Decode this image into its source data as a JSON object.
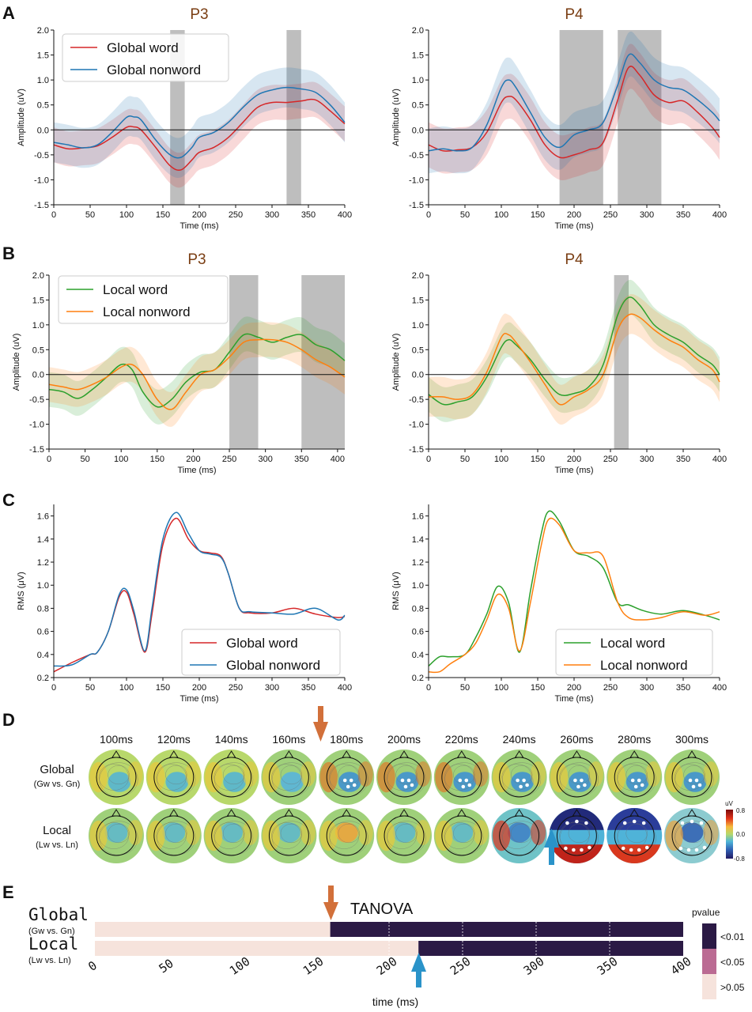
{
  "panels": {
    "A": {
      "letter": "A"
    },
    "B": {
      "letter": "B"
    },
    "C": {
      "letter": "C"
    },
    "D": {
      "letter": "D"
    },
    "E": {
      "letter": "E"
    }
  },
  "axis_labels": {
    "amplitude": "Amplitude (uV)",
    "rms": "RMS (μV)",
    "time": "Time (ms)",
    "time_e": "time (ms)"
  },
  "chart_data": [
    {
      "id": "A_P3",
      "type": "line",
      "title": "P3",
      "xlabel": "Time (ms)",
      "ylabel": "Amplitude (uV)",
      "xlim": [
        0,
        400
      ],
      "ylim": [
        -1.5,
        2.0
      ],
      "xticks": [
        0,
        50,
        100,
        150,
        200,
        250,
        300,
        350,
        400
      ],
      "yticks": [
        -1.5,
        -1.0,
        -0.5,
        0.0,
        0.5,
        1.0,
        1.5,
        2.0
      ],
      "legend": "top-left",
      "significant_windows": [
        [
          160,
          180
        ],
        [
          320,
          340
        ]
      ],
      "series": [
        {
          "name": "Global word",
          "color": "#d62728",
          "x": [
            0,
            20,
            40,
            60,
            80,
            100,
            110,
            120,
            140,
            160,
            175,
            190,
            200,
            220,
            240,
            260,
            280,
            300,
            320,
            340,
            360,
            380,
            400
          ],
          "values": [
            -0.3,
            -0.38,
            -0.36,
            -0.32,
            -0.15,
            0.05,
            0.06,
            0.0,
            -0.35,
            -0.72,
            -0.8,
            -0.6,
            -0.45,
            -0.35,
            -0.15,
            0.15,
            0.45,
            0.55,
            0.55,
            0.58,
            0.6,
            0.38,
            0.12
          ],
          "band": 0.35
        },
        {
          "name": "Global nonword",
          "color": "#1f77b4",
          "x": [
            0,
            20,
            40,
            60,
            80,
            100,
            110,
            120,
            140,
            160,
            175,
            190,
            200,
            220,
            240,
            260,
            280,
            300,
            320,
            340,
            360,
            380,
            400
          ],
          "values": [
            -0.25,
            -0.3,
            -0.36,
            -0.3,
            -0.05,
            0.25,
            0.26,
            0.2,
            -0.2,
            -0.5,
            -0.55,
            -0.35,
            -0.15,
            -0.05,
            0.15,
            0.45,
            0.7,
            0.8,
            0.85,
            0.82,
            0.75,
            0.5,
            0.15
          ],
          "band": 0.4
        }
      ]
    },
    {
      "id": "A_P4",
      "type": "line",
      "title": "P4",
      "xlabel": "Time (ms)",
      "ylabel": "Amplitude (uV)",
      "xlim": [
        0,
        400
      ],
      "ylim": [
        -1.5,
        2.0
      ],
      "xticks": [
        0,
        50,
        100,
        150,
        200,
        250,
        300,
        350,
        400
      ],
      "yticks": [
        -1.5,
        -1.0,
        -0.5,
        0.0,
        0.5,
        1.0,
        1.5,
        2.0
      ],
      "significant_windows": [
        [
          180,
          240
        ],
        [
          260,
          320
        ]
      ],
      "series": [
        {
          "name": "Global word",
          "color": "#d62728",
          "x": [
            0,
            20,
            40,
            60,
            80,
            100,
            110,
            120,
            140,
            160,
            180,
            200,
            220,
            240,
            260,
            275,
            290,
            310,
            330,
            350,
            370,
            390,
            400
          ],
          "values": [
            -0.3,
            -0.42,
            -0.4,
            -0.35,
            -0.05,
            0.55,
            0.67,
            0.6,
            0.2,
            -0.3,
            -0.55,
            -0.5,
            -0.4,
            -0.25,
            0.6,
            1.25,
            1.1,
            0.7,
            0.55,
            0.58,
            0.35,
            0.05,
            -0.15
          ],
          "band": 0.45
        },
        {
          "name": "Global nonword",
          "color": "#1f77b4",
          "x": [
            0,
            20,
            40,
            60,
            80,
            100,
            110,
            120,
            140,
            160,
            180,
            200,
            220,
            240,
            260,
            275,
            290,
            310,
            330,
            350,
            370,
            390,
            400
          ],
          "values": [
            -0.42,
            -0.38,
            -0.42,
            -0.35,
            0.1,
            0.85,
            1.0,
            0.85,
            0.35,
            -0.15,
            -0.35,
            -0.1,
            0.0,
            0.15,
            0.9,
            1.5,
            1.35,
            1.0,
            0.85,
            0.8,
            0.6,
            0.35,
            0.18
          ],
          "band": 0.45
        }
      ]
    },
    {
      "id": "B_P3",
      "type": "line",
      "title": "P3",
      "xlabel": "Time (ms)",
      "ylabel": "Amplitude (uV)",
      "xlim": [
        0,
        410
      ],
      "ylim": [
        -1.5,
        2.0
      ],
      "xticks": [
        0,
        50,
        100,
        150,
        200,
        250,
        300,
        350,
        400
      ],
      "yticks": [
        -1.5,
        -1.0,
        -0.5,
        0.0,
        0.5,
        1.0,
        1.5,
        2.0
      ],
      "legend": "top-left",
      "significant_windows": [
        [
          250,
          290
        ],
        [
          350,
          410
        ]
      ],
      "series": [
        {
          "name": "Local word",
          "color": "#2ca02c",
          "x": [
            0,
            20,
            40,
            60,
            80,
            100,
            115,
            130,
            150,
            170,
            190,
            210,
            230,
            250,
            270,
            290,
            310,
            330,
            350,
            370,
            390,
            410
          ],
          "values": [
            -0.3,
            -0.35,
            -0.48,
            -0.3,
            -0.05,
            0.2,
            0.1,
            -0.35,
            -0.65,
            -0.5,
            -0.15,
            0.05,
            0.1,
            0.45,
            0.8,
            0.75,
            0.65,
            0.75,
            0.8,
            0.6,
            0.5,
            0.28
          ],
          "band": 0.35
        },
        {
          "name": "Local nonword",
          "color": "#ff7f0e",
          "x": [
            0,
            20,
            40,
            60,
            80,
            100,
            115,
            130,
            150,
            170,
            190,
            210,
            230,
            250,
            270,
            290,
            310,
            330,
            350,
            370,
            390,
            410
          ],
          "values": [
            -0.2,
            -0.25,
            -0.3,
            -0.2,
            -0.05,
            0.15,
            0.2,
            0.0,
            -0.5,
            -0.7,
            -0.35,
            0.0,
            0.1,
            0.35,
            0.65,
            0.7,
            0.7,
            0.65,
            0.5,
            0.3,
            0.15,
            -0.05
          ],
          "band": 0.35
        }
      ]
    },
    {
      "id": "B_P4",
      "type": "line",
      "title": "P4",
      "xlabel": "Time (ms)",
      "ylabel": "Amplitude (uV)",
      "xlim": [
        0,
        400
      ],
      "ylim": [
        -1.5,
        2.0
      ],
      "xticks": [
        0,
        50,
        100,
        150,
        200,
        250,
        300,
        350,
        400
      ],
      "yticks": [
        -1.5,
        -1.0,
        -0.5,
        0.0,
        0.5,
        1.0,
        1.5,
        2.0
      ],
      "significant_windows": [
        [
          255,
          275
        ]
      ],
      "series": [
        {
          "name": "Local word",
          "color": "#2ca02c",
          "x": [
            0,
            20,
            40,
            60,
            80,
            100,
            110,
            120,
            140,
            160,
            180,
            200,
            220,
            240,
            260,
            275,
            290,
            310,
            330,
            350,
            370,
            390,
            400
          ],
          "values": [
            -0.4,
            -0.6,
            -0.55,
            -0.45,
            -0.05,
            0.55,
            0.7,
            0.6,
            0.3,
            -0.1,
            -0.4,
            -0.38,
            -0.25,
            0.2,
            1.2,
            1.55,
            1.4,
            1.0,
            0.8,
            0.65,
            0.4,
            0.2,
            0.0
          ],
          "band": 0.35
        },
        {
          "name": "Local nonword",
          "color": "#ff7f0e",
          "x": [
            0,
            20,
            40,
            60,
            80,
            100,
            110,
            120,
            140,
            160,
            180,
            200,
            220,
            240,
            260,
            275,
            290,
            310,
            330,
            350,
            370,
            390,
            400
          ],
          "values": [
            -0.45,
            -0.45,
            -0.5,
            -0.4,
            0.05,
            0.75,
            0.8,
            0.65,
            0.25,
            -0.2,
            -0.6,
            -0.45,
            -0.3,
            0.0,
            0.9,
            1.2,
            1.15,
            0.9,
            0.7,
            0.55,
            0.3,
            0.1,
            -0.15
          ],
          "band": 0.4
        }
      ]
    },
    {
      "id": "C_global",
      "type": "line",
      "xlabel": "Time (ms)",
      "ylabel": "RMS (μV)",
      "xlim": [
        0,
        400
      ],
      "ylim": [
        0.2,
        1.7
      ],
      "xticks": [
        0,
        50,
        100,
        150,
        200,
        250,
        300,
        350,
        400
      ],
      "yticks": [
        0.2,
        0.4,
        0.6,
        0.8,
        1.0,
        1.2,
        1.4,
        1.6
      ],
      "legend": "bottom-right",
      "series": [
        {
          "name": "Global word",
          "color": "#d62728",
          "x": [
            0,
            25,
            50,
            60,
            75,
            90,
            100,
            110,
            125,
            135,
            150,
            168,
            185,
            200,
            215,
            230,
            240,
            255,
            270,
            300,
            330,
            360,
            390,
            400
          ],
          "values": [
            0.25,
            0.33,
            0.4,
            0.42,
            0.6,
            0.9,
            0.94,
            0.75,
            0.42,
            0.75,
            1.35,
            1.58,
            1.4,
            1.3,
            1.28,
            1.25,
            1.1,
            0.8,
            0.76,
            0.76,
            0.8,
            0.75,
            0.72,
            0.73
          ],
          "band": 0
        },
        {
          "name": "Global nonword",
          "color": "#1f77b4",
          "x": [
            0,
            25,
            50,
            60,
            75,
            90,
            100,
            110,
            125,
            135,
            150,
            168,
            185,
            200,
            215,
            230,
            240,
            255,
            270,
            300,
            330,
            360,
            390,
            400
          ],
          "values": [
            0.3,
            0.31,
            0.4,
            0.42,
            0.6,
            0.92,
            0.96,
            0.78,
            0.43,
            0.8,
            1.4,
            1.63,
            1.45,
            1.3,
            1.27,
            1.24,
            1.1,
            0.8,
            0.77,
            0.76,
            0.75,
            0.8,
            0.7,
            0.74
          ],
          "band": 0
        }
      ]
    },
    {
      "id": "C_local",
      "type": "line",
      "xlabel": "Time (ms)",
      "ylabel": "RMS (μV)",
      "xlim": [
        0,
        400
      ],
      "ylim": [
        0.2,
        1.7
      ],
      "xticks": [
        0,
        50,
        100,
        150,
        200,
        250,
        300,
        350,
        400
      ],
      "yticks": [
        0.2,
        0.4,
        0.6,
        0.8,
        1.0,
        1.2,
        1.4,
        1.6
      ],
      "legend": "bottom-right",
      "series": [
        {
          "name": "Local word",
          "color": "#2ca02c",
          "x": [
            0,
            15,
            30,
            50,
            65,
            80,
            95,
            110,
            125,
            140,
            155,
            165,
            180,
            200,
            220,
            240,
            260,
            275,
            295,
            320,
            350,
            380,
            400
          ],
          "values": [
            0.3,
            0.38,
            0.38,
            0.4,
            0.55,
            0.75,
            0.99,
            0.85,
            0.42,
            0.95,
            1.45,
            1.64,
            1.55,
            1.3,
            1.25,
            1.15,
            0.85,
            0.83,
            0.78,
            0.75,
            0.78,
            0.74,
            0.7
          ],
          "band": 0
        },
        {
          "name": "Local nonword",
          "color": "#ff7f0e",
          "x": [
            0,
            15,
            30,
            50,
            65,
            80,
            95,
            110,
            125,
            140,
            155,
            165,
            180,
            200,
            220,
            240,
            260,
            275,
            295,
            320,
            350,
            380,
            400
          ],
          "values": [
            0.25,
            0.25,
            0.32,
            0.4,
            0.5,
            0.7,
            0.92,
            0.8,
            0.43,
            0.85,
            1.35,
            1.57,
            1.52,
            1.3,
            1.28,
            1.25,
            0.85,
            0.72,
            0.7,
            0.72,
            0.77,
            0.74,
            0.77
          ],
          "band": 0
        }
      ]
    },
    {
      "id": "E_tanova",
      "type": "heatmap",
      "xlabel": "time (ms)",
      "xlim": [
        0,
        400
      ],
      "xticks": [
        0,
        50,
        100,
        150,
        200,
        250,
        300,
        350,
        400
      ],
      "annotation": "TANOVA",
      "rows": [
        {
          "label": "Global",
          "sub": "(Gw vs. Gn)",
          "significant_from_ms": 160
        },
        {
          "label": "Local",
          "sub": "(Lw vs. Ln)",
          "significant_from_ms": 220
        }
      ],
      "legend_title": "pvalue",
      "legend_levels": [
        {
          "label": "<0.01",
          "color": "#2b1a45"
        },
        {
          "label": "<0.05",
          "color": "#bb6b93"
        },
        {
          "label": ">0.05",
          "color": "#f6e3dc"
        }
      ]
    }
  ],
  "topomaps": {
    "times": [
      "100ms",
      "120ms",
      "140ms",
      "160ms",
      "180ms",
      "200ms",
      "220ms",
      "240ms",
      "260ms",
      "280ms",
      "300ms"
    ],
    "rows": [
      {
        "label": "Global",
        "sub": "(Gw vs. Gn)"
      },
      {
        "label": "Local",
        "sub": "(Lw vs. Ln)"
      }
    ],
    "colorbar": {
      "unit": "uV",
      "max": "0.8",
      "mid": "0.0",
      "min": "-0.8"
    }
  },
  "colors": {
    "global_arrow": "#d2703a",
    "local_arrow": "#2a93c9",
    "significance_shade": "#a8a8a8"
  }
}
